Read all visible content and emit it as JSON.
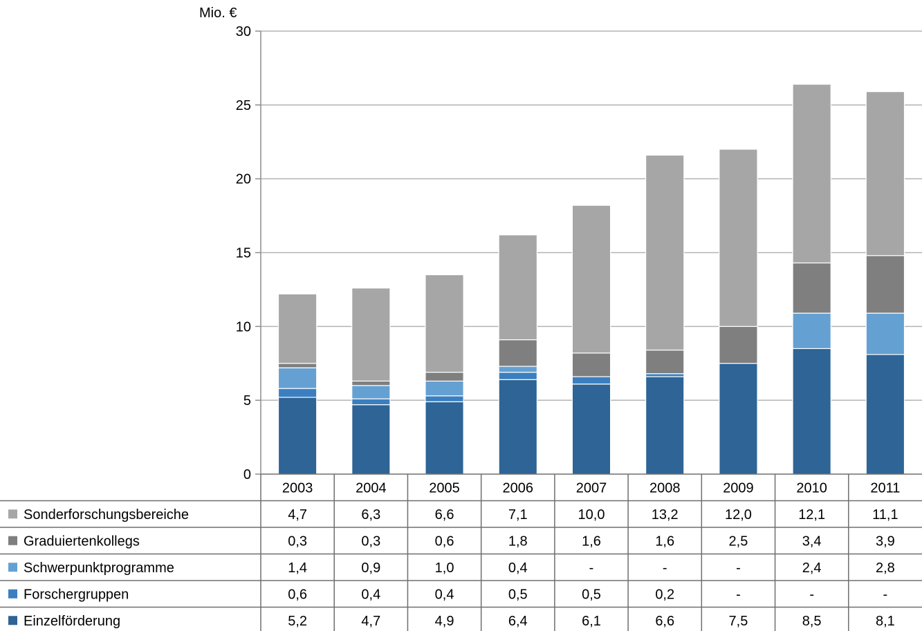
{
  "chart_data": {
    "type": "bar",
    "stacked": true,
    "unit_label": "Mio. €",
    "ylim": [
      0,
      30
    ],
    "yticks": [
      "0",
      "5",
      "10",
      "15",
      "20",
      "25",
      "30"
    ],
    "grid": true,
    "legend_placement": "data table below chart",
    "categories": [
      "2003",
      "2004",
      "2005",
      "2006",
      "2007",
      "2008",
      "2009",
      "2010",
      "2011"
    ],
    "series": [
      {
        "name": "Einzelförderung",
        "color": "#2e6496",
        "values": [
          5.2,
          4.7,
          4.9,
          6.4,
          6.1,
          6.6,
          7.5,
          8.5,
          8.1
        ],
        "labels": [
          "5,2",
          "4,7",
          "4,9",
          "6,4",
          "6,1",
          "6,6",
          "7,5",
          "8,5",
          "8,1"
        ]
      },
      {
        "name": "Forschergruppen",
        "color": "#3b7fc0",
        "values": [
          0.6,
          0.4,
          0.4,
          0.5,
          0.5,
          0.2,
          0,
          0,
          0
        ],
        "labels": [
          "0,6",
          "0,4",
          "0,4",
          "0,5",
          "0,5",
          "0,2",
          "-",
          "-",
          "-"
        ]
      },
      {
        "name": "Schwerpunktprogramme",
        "color": "#65a0d2",
        "values": [
          1.4,
          0.9,
          1.0,
          0.4,
          0,
          0,
          0,
          2.4,
          2.8
        ],
        "labels": [
          "1,4",
          "0,9",
          "1,0",
          "0,4",
          "-",
          "-",
          "-",
          "2,4",
          "2,8"
        ]
      },
      {
        "name": "Graduiertenkollegs",
        "color": "#7f7f7f",
        "values": [
          0.3,
          0.3,
          0.6,
          1.8,
          1.6,
          1.6,
          2.5,
          3.4,
          3.9
        ],
        "labels": [
          "0,3",
          "0,3",
          "0,6",
          "1,8",
          "1,6",
          "1,6",
          "2,5",
          "3,4",
          "3,9"
        ]
      },
      {
        "name": "Sonderforschungsbereiche",
        "color": "#a6a6a6",
        "values": [
          4.7,
          6.3,
          6.6,
          7.1,
          10.0,
          13.2,
          12.0,
          12.1,
          11.1
        ],
        "labels": [
          "4,7",
          "6,3",
          "6,6",
          "7,1",
          "10,0",
          "13,2",
          "12,0",
          "12,1",
          "11,1"
        ]
      }
    ]
  }
}
